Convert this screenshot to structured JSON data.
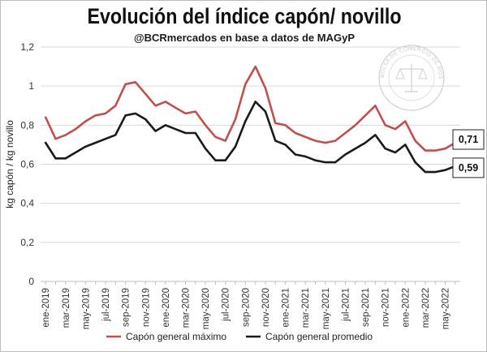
{
  "chart_data": {
    "type": "line",
    "title": "Evolución del índice capón/ novillo",
    "subtitle": "@BCRmercados  en base a datos de MAGyP",
    "ylabel": "kg capón / kg novillo",
    "xlabel": "",
    "ylim": [
      0,
      1.2
    ],
    "yticks": [
      0,
      0.2,
      0.4,
      0.6,
      0.8,
      1,
      1.2
    ],
    "ytick_labels": [
      "0",
      "0,2",
      "0,4",
      "0,6",
      "0,8",
      "1",
      "1,2"
    ],
    "x": [
      "ene-2019",
      "feb-2019",
      "mar-2019",
      "abr-2019",
      "may-2019",
      "jun-2019",
      "jul-2019",
      "ago-2019",
      "sep-2019",
      "oct-2019",
      "nov-2019",
      "dic-2019",
      "ene-2020",
      "feb-2020",
      "mar-2020",
      "abr-2020",
      "may-2020",
      "jun-2020",
      "jul-2020",
      "ago-2020",
      "sep-2020",
      "oct-2020",
      "nov-2020",
      "dic-2020",
      "ene-2021",
      "feb-2021",
      "mar-2021",
      "abr-2021",
      "may-2021",
      "jun-2021",
      "jul-2021",
      "ago-2021",
      "sep-2021",
      "oct-2021",
      "nov-2021",
      "dic-2021",
      "ene-2022",
      "feb-2022",
      "mar-2022",
      "abr-2022",
      "may-2022",
      "jun-2022"
    ],
    "x_tick_labels": [
      "ene-2019",
      "",
      "mar-2019",
      "",
      "may-2019",
      "",
      "jul-2019",
      "",
      "sep-2019",
      "",
      "nov-2019",
      "",
      "ene-2020",
      "",
      "mar-2020",
      "",
      "may-2020",
      "",
      "jul-2020",
      "",
      "sep-2020",
      "",
      "nov-2020",
      "",
      "ene-2021",
      "",
      "mar-2021",
      "",
      "may-2021",
      "",
      "jul-2021",
      "",
      "sep-2021",
      "",
      "nov-2021",
      "",
      "ene-2022",
      "",
      "mar-2022",
      "",
      "may-2022",
      ""
    ],
    "series": [
      {
        "name": "Capón general máximo",
        "color": "#c0504d",
        "values": [
          0.84,
          0.73,
          0.75,
          0.78,
          0.82,
          0.85,
          0.86,
          0.9,
          1.01,
          1.02,
          0.96,
          0.9,
          0.92,
          0.89,
          0.86,
          0.87,
          0.8,
          0.74,
          0.72,
          0.83,
          1.01,
          1.1,
          0.99,
          0.81,
          0.8,
          0.76,
          0.74,
          0.72,
          0.71,
          0.72,
          0.76,
          0.8,
          0.85,
          0.9,
          0.8,
          0.78,
          0.82,
          0.72,
          0.67,
          0.67,
          0.68,
          0.71
        ],
        "end_label": "0,71"
      },
      {
        "name": "Capón general promedio",
        "color": "#1a1a1a",
        "values": [
          0.71,
          0.63,
          0.63,
          0.66,
          0.69,
          0.71,
          0.73,
          0.75,
          0.85,
          0.86,
          0.83,
          0.77,
          0.8,
          0.78,
          0.76,
          0.76,
          0.68,
          0.62,
          0.62,
          0.69,
          0.82,
          0.92,
          0.87,
          0.72,
          0.7,
          0.65,
          0.64,
          0.62,
          0.61,
          0.61,
          0.65,
          0.68,
          0.71,
          0.75,
          0.68,
          0.66,
          0.7,
          0.61,
          0.56,
          0.56,
          0.57,
          0.59
        ],
        "end_label": "0,59"
      }
    ],
    "legend": {
      "position": "bottom"
    },
    "grid": true
  },
  "watermark": {
    "text": "BOLSA DE COMERCIO DE ROSARIO"
  }
}
